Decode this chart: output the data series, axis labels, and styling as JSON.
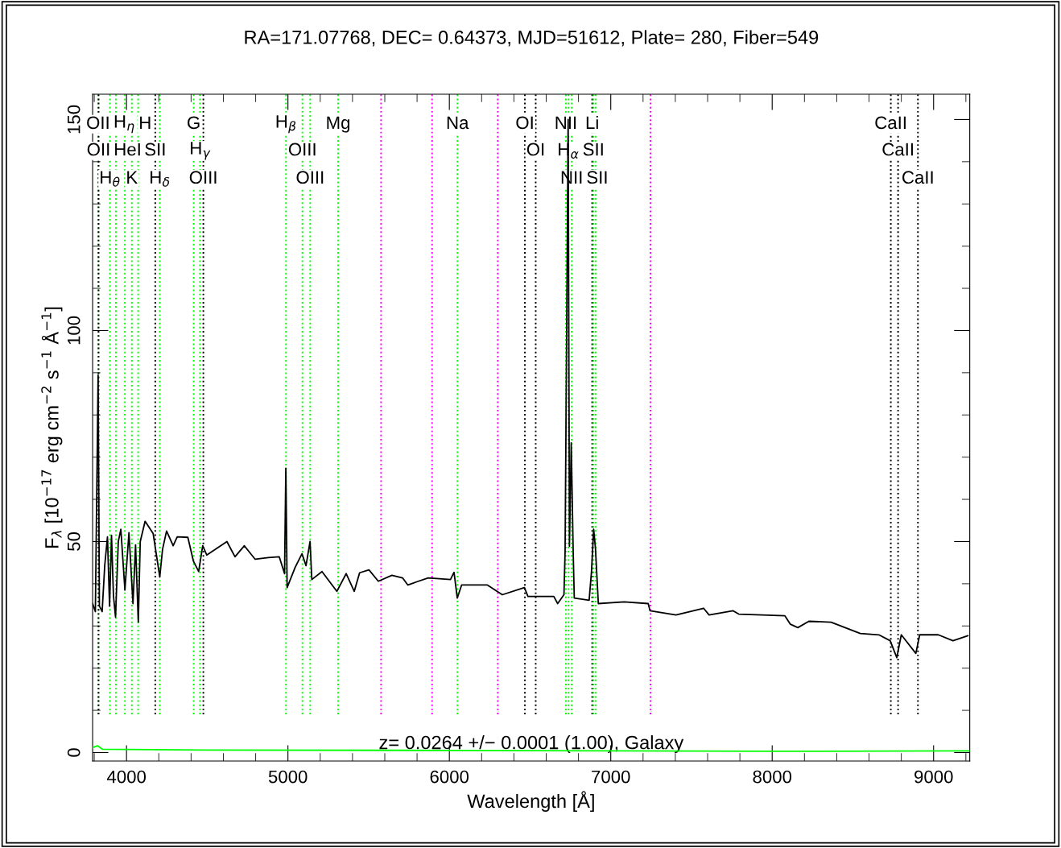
{
  "chart_data": {
    "type": "line",
    "title": "RA=171.07768, DEC= 0.64373, MJD=51612, Plate= 280, Fiber=549",
    "xlabel": "Wavelength [Å]",
    "ylabel": "F$_{λ}$ [10$^{−17}$ erg cm$^{−2}$ s$^{−1}$ Å$^{−1}$]",
    "annotations": [
      "z= 0.0264 +/− 0.0001 (1.00), Galaxy"
    ],
    "xlim": [
      3790,
      9224
    ],
    "ylim": [
      -2,
      156
    ],
    "xticks": [
      {
        "value": 3800,
        "label": null
      },
      4000,
      {
        "value": 4200,
        "label": null
      },
      {
        "value": 4400,
        "label": null
      },
      {
        "value": 4600,
        "label": null
      },
      {
        "value": 4800,
        "label": null
      },
      5000,
      {
        "value": 5200,
        "label": null
      },
      {
        "value": 5400,
        "label": null
      },
      {
        "value": 5600,
        "label": null
      },
      {
        "value": 5800,
        "label": null
      },
      6000,
      {
        "value": 6200,
        "label": null
      },
      {
        "value": 6400,
        "label": null
      },
      {
        "value": 6600,
        "label": null
      },
      {
        "value": 6800,
        "label": null
      },
      7000,
      {
        "value": 7200,
        "label": null
      },
      {
        "value": 7400,
        "label": null
      },
      {
        "value": 7600,
        "label": null
      },
      {
        "value": 7800,
        "label": null
      },
      8000,
      {
        "value": 8200,
        "label": null
      },
      {
        "value": 8400,
        "label": null
      },
      {
        "value": 8600,
        "label": null
      },
      {
        "value": 8800,
        "label": null
      },
      9000,
      {
        "value": 9200,
        "label": null
      }
    ],
    "yticks": [
      0,
      {
        "value": 10,
        "label": null
      },
      {
        "value": 20,
        "label": null
      },
      {
        "value": 30,
        "label": null
      },
      {
        "value": 40,
        "label": null
      },
      50,
      {
        "value": 60,
        "label": null
      },
      {
        "value": 70,
        "label": null
      },
      {
        "value": 80,
        "label": null
      },
      {
        "value": 90,
        "label": null
      },
      100,
      {
        "value": 110,
        "label": null
      },
      {
        "value": 120,
        "label": null
      },
      {
        "value": 130,
        "label": null
      },
      {
        "value": 140,
        "label": null
      },
      150
    ],
    "grid": false,
    "marker": "none",
    "line_style": "solid",
    "series": [
      {
        "color": "#000000",
        "x": [
          3790,
          3807,
          3824,
          3832,
          3849,
          3865,
          3882,
          3895,
          3907,
          3919,
          3932,
          3949,
          3965,
          3990,
          4015,
          4040,
          4056,
          4073,
          4085,
          4115,
          4165,
          4206,
          4223,
          4248,
          4289,
          4314,
          4380,
          4414,
          4447,
          4472,
          4497,
          4622,
          4672,
          4730,
          4797,
          4879,
          4946,
          4979,
          4987,
          4995,
          5045,
          5087,
          5112,
          5137,
          5148,
          5211,
          5303,
          5361,
          5411,
          5444,
          5502,
          5560,
          5644,
          5710,
          5743,
          5801,
          5869,
          6007,
          6029,
          6049,
          6076,
          6236,
          6328,
          6465,
          6487,
          6647,
          6671,
          6710,
          6717,
          6736,
          6744,
          6755,
          6767,
          6774,
          6866,
          6881,
          6894,
          6905,
          6923,
          7083,
          7232,
          7243,
          7404,
          7575,
          7609,
          7758,
          7793,
          8079,
          8113,
          8159,
          8227,
          8365,
          8546,
          8661,
          8731,
          8772,
          8800,
          8890,
          8914,
          9029,
          9120,
          9212
        ],
        "values": [
          35.3,
          33.4,
          89.4,
          34.7,
          33.4,
          44.3,
          51.1,
          34.7,
          51.5,
          37.2,
          32.1,
          50,
          52.9,
          38.5,
          52.1,
          35.3,
          49.2,
          30.9,
          50,
          54.8,
          51.9,
          41.6,
          48.1,
          52.5,
          49,
          51.1,
          51,
          45.4,
          42.9,
          49,
          46.8,
          50,
          46.4,
          49,
          45.8,
          46.2,
          46.4,
          42.4,
          67.4,
          39.1,
          43.9,
          47.1,
          44.3,
          50,
          41,
          42.9,
          38.2,
          42.4,
          38.2,
          42.6,
          43.3,
          40.6,
          42,
          41.4,
          39.7,
          40.5,
          41.4,
          41,
          42.7,
          36.6,
          39.7,
          39.7,
          37.4,
          39.1,
          37,
          37,
          35.3,
          37.4,
          47.5,
          150,
          48.9,
          73.4,
          47.9,
          36.6,
          36.1,
          43.1,
          52.9,
          48.5,
          35.3,
          35.7,
          35.3,
          33.6,
          32.6,
          34.2,
          32.6,
          33.6,
          32.8,
          32.4,
          30.4,
          29.6,
          31.1,
          30.9,
          28.2,
          27.9,
          26.5,
          22.5,
          27.9,
          23.5,
          27.9,
          27.9,
          26.5,
          27.7
        ]
      },
      {
        "color": "#00ff00",
        "x": [
          3790,
          3820,
          3850,
          4500,
          6000,
          7000,
          8000,
          9224
        ],
        "values": [
          1.2,
          1.6,
          0.8,
          0.6,
          0.5,
          0.4,
          0.3,
          0.4
        ]
      }
    ],
    "ref_lines": [
      {
        "axis": "x",
        "value": 3824,
        "label": "OII",
        "color": "#00ff00",
        "line_style": "dotted"
      },
      {
        "axis": "x",
        "value": 3827,
        "label": "OII",
        "color": "#000000",
        "line_style": "dotted"
      },
      {
        "axis": "x",
        "value": 3897,
        "label": "H$_{θ}$",
        "color": "#00ff00",
        "line_style": "dotted"
      },
      {
        "axis": "x",
        "value": 3934,
        "label": "H$_{η}$",
        "color": "#00ff00",
        "line_style": "dotted"
      },
      {
        "axis": "x",
        "value": 3990,
        "label": "HeI",
        "color": "#00ff00",
        "line_style": "dotted"
      },
      {
        "axis": "x",
        "value": 4033,
        "label": "K",
        "color": "#00ff00",
        "line_style": "dotted"
      },
      {
        "axis": "x",
        "value": 4072,
        "label": "H",
        "color": "#00ff00",
        "line_style": "dotted"
      },
      {
        "axis": "x",
        "value": 4178,
        "label": "SII",
        "color": "#000000",
        "line_style": "dotted"
      },
      {
        "axis": "x",
        "value": 4206,
        "label": "H$_{δ}$",
        "color": "#00ff00",
        "line_style": "dotted"
      },
      {
        "axis": "x",
        "value": 4416,
        "label": "G",
        "color": "#00ff00",
        "line_style": "dotted"
      },
      {
        "axis": "x",
        "value": 4455,
        "label": "H$_{γ}$",
        "color": "#00ff00",
        "line_style": "dotted"
      },
      {
        "axis": "x",
        "value": 4476,
        "label": "OIII",
        "color": "#000000",
        "line_style": "dotted"
      },
      {
        "axis": "x",
        "value": 4988,
        "label": "H$_{β}$",
        "color": "#00ff00",
        "line_style": "dotted"
      },
      {
        "axis": "x",
        "value": 5090,
        "label": "OIII",
        "color": "#00ff00",
        "line_style": "dotted"
      },
      {
        "axis": "x",
        "value": 5138,
        "label": "OIII",
        "color": "#00ff00",
        "line_style": "dotted"
      },
      {
        "axis": "x",
        "value": 5311,
        "label": "Mg",
        "color": "#00ff00",
        "line_style": "dotted"
      },
      {
        "axis": "x",
        "value": 5577,
        "label": null,
        "color": "#ff00ff",
        "line_style": "dotted"
      },
      {
        "axis": "x",
        "value": 5893,
        "label": null,
        "color": "#ff00ff",
        "line_style": "dotted"
      },
      {
        "axis": "x",
        "value": 6050,
        "label": "Na",
        "color": "#00ff00",
        "line_style": "dotted"
      },
      {
        "axis": "x",
        "value": 6300,
        "label": null,
        "color": "#ff00ff",
        "line_style": "dotted"
      },
      {
        "axis": "x",
        "value": 6468,
        "label": "OI",
        "color": "#000000",
        "line_style": "dotted"
      },
      {
        "axis": "x",
        "value": 6535,
        "label": "OI",
        "color": "#000000",
        "line_style": "dotted"
      },
      {
        "axis": "x",
        "value": 6722,
        "label": "NII",
        "color": "#00ff00",
        "line_style": "dotted"
      },
      {
        "axis": "x",
        "value": 6737,
        "label": "H$_{α}$",
        "color": "#00ff00",
        "line_style": "dotted"
      },
      {
        "axis": "x",
        "value": 6758,
        "label": "NII",
        "color": "#00ff00",
        "line_style": "dotted"
      },
      {
        "axis": "x",
        "value": 6885,
        "label": "Li",
        "color": "#000000",
        "line_style": "dotted"
      },
      {
        "axis": "x",
        "value": 6893,
        "label": "SII",
        "color": "#00ff00",
        "line_style": "dotted"
      },
      {
        "axis": "x",
        "value": 6906,
        "label": "SII",
        "color": "#00ff00",
        "line_style": "dotted"
      },
      {
        "axis": "x",
        "value": 7246,
        "label": null,
        "color": "#ff00ff",
        "line_style": "dotted"
      },
      {
        "axis": "x",
        "value": 8735,
        "label": "CaII",
        "color": "#000000",
        "line_style": "dotted"
      },
      {
        "axis": "x",
        "value": 8780,
        "label": "CaII",
        "color": "#000000",
        "line_style": "dotted"
      },
      {
        "axis": "x",
        "value": 8903,
        "label": "CaII",
        "color": "#000000",
        "line_style": "dotted"
      }
    ]
  }
}
